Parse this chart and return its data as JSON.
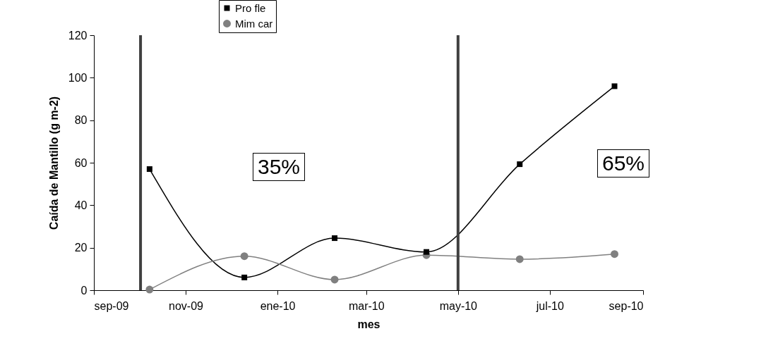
{
  "chart_data": {
    "type": "line",
    "xlabel": "mes",
    "ylabel": "Caída de Mantillo (g m-2)",
    "x": [
      "2009-10-08",
      "2009-12-10",
      "2010-02-08",
      "2010-04-10",
      "2010-06-11",
      "2010-08-13"
    ],
    "series": [
      {
        "name": "Pro fle",
        "color": "#000000",
        "marker": "square",
        "values": [
          57,
          6,
          24.5,
          18,
          59.3,
          96
        ]
      },
      {
        "name": "Mim car",
        "color": "#808080",
        "marker": "circle",
        "values": [
          0.3,
          16,
          5,
          16.5,
          14.6,
          17
        ]
      }
    ],
    "xlim": [
      "2009-09-01",
      "2010-09-01"
    ],
    "xticks": [
      {
        "value": "2009-09-01",
        "label": "sep-09"
      },
      {
        "value": "2009-11-01",
        "label": "nov-09"
      },
      {
        "value": "2010-01-01",
        "label": "ene-10"
      },
      {
        "value": "2010-03-01",
        "label": "mar-10"
      },
      {
        "value": "2010-05-01",
        "label": "may-10"
      },
      {
        "value": "2010-07-01",
        "label": "jul-10"
      },
      {
        "value": "2010-09-01",
        "label": "sep-10"
      }
    ],
    "ylim": [
      0,
      120
    ],
    "yticks": [
      0,
      20,
      40,
      60,
      80,
      100,
      120
    ],
    "ref_lines": [
      {
        "axis": "x",
        "value": "2009-10-02",
        "color": "#404040"
      },
      {
        "axis": "x",
        "value": "2010-05-01",
        "color": "#404040"
      }
    ],
    "annotations": [
      "35%",
      "65%"
    ],
    "grid": false,
    "legend": "top",
    "line_style": "solid"
  }
}
